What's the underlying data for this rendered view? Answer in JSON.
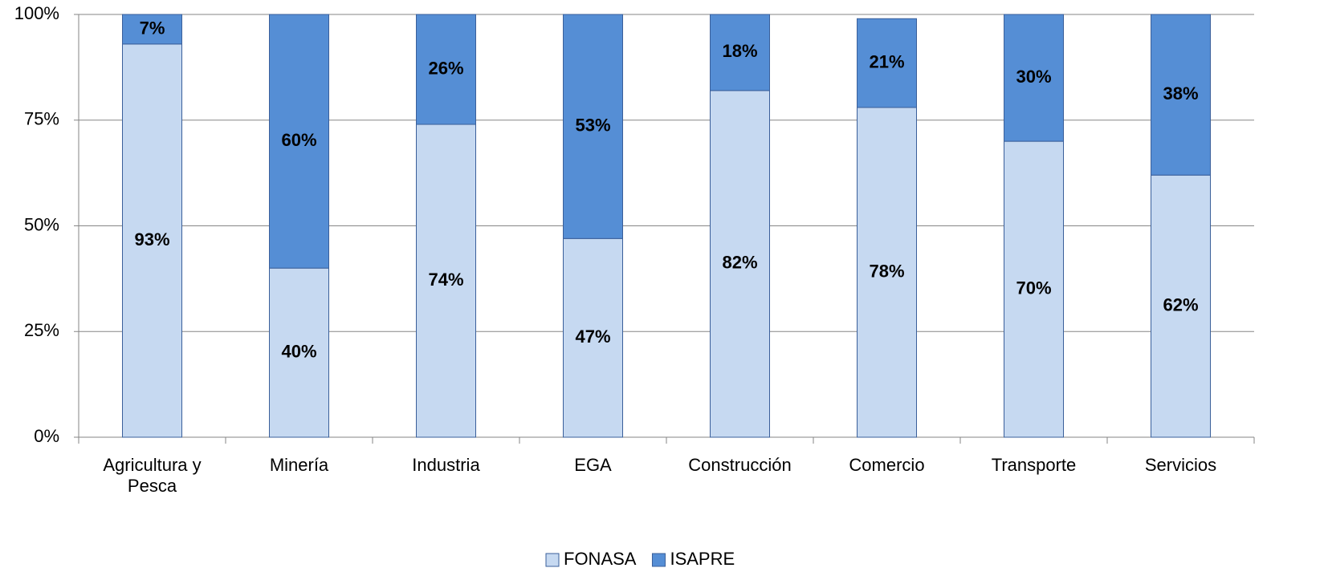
{
  "chart_data": {
    "type": "bar",
    "stacked": true,
    "categories": [
      "Agricultura y Pesca",
      "Minería",
      "Industria",
      "EGA",
      "Construcción",
      "Comercio",
      "Transporte",
      "Servicios"
    ],
    "series": [
      {
        "name": "FONASA",
        "color": "#c6d9f1",
        "values": [
          93,
          40,
          74,
          47,
          82,
          78,
          70,
          62
        ],
        "value_labels": [
          "93%",
          "40%",
          "74%",
          "47%",
          "82%",
          "78%",
          "70%",
          "62%"
        ]
      },
      {
        "name": "ISAPRE",
        "color": "#558ed5",
        "values": [
          7,
          60,
          26,
          53,
          18,
          21,
          30,
          38
        ],
        "value_labels": [
          "7%",
          "60%",
          "26%",
          "53%",
          "18%",
          "21%",
          "30%",
          "38%"
        ]
      }
    ],
    "ylim": [
      0,
      100
    ],
    "yticks": [
      {
        "value": 0,
        "label": "0%"
      },
      {
        "value": 25,
        "label": "25%"
      },
      {
        "value": 50,
        "label": "50%"
      },
      {
        "value": 75,
        "label": "75%"
      },
      {
        "value": 100,
        "label": "100%"
      }
    ],
    "grid": true,
    "legend": "bottom"
  }
}
